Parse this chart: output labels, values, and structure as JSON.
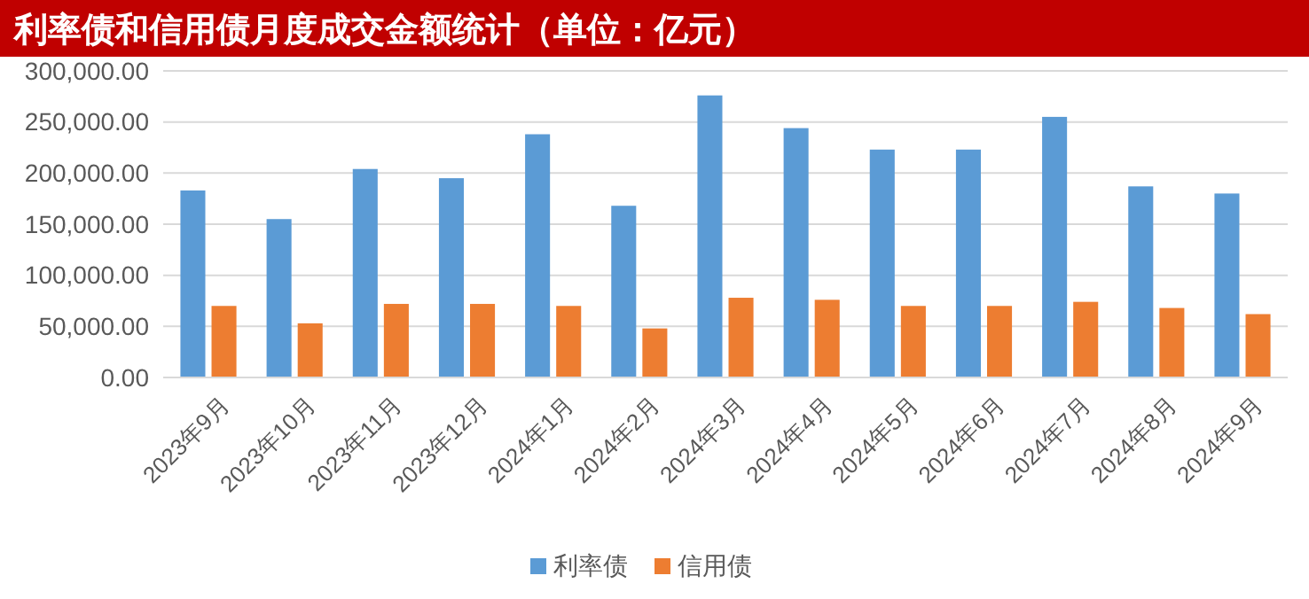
{
  "chart_data": {
    "type": "bar",
    "title": "利率债和信用债月度成交金额统计（单位：亿元）",
    "categories": [
      "2023年9月",
      "2023年10月",
      "2023年11月",
      "2023年12月",
      "2024年1月",
      "2024年2月",
      "2024年3月",
      "2024年4月",
      "2024年5月",
      "2024年6月",
      "2024年7月",
      "2024年8月",
      "2024年9月"
    ],
    "series": [
      {
        "name": "利率债",
        "color": "#5b9bd5",
        "values": [
          183000,
          155000,
          204000,
          195000,
          238000,
          168000,
          276000,
          244000,
          223000,
          223000,
          255000,
          187000,
          180000
        ]
      },
      {
        "name": "信用债",
        "color": "#ed7d31",
        "values": [
          70000,
          53000,
          72000,
          72000,
          70000,
          48000,
          78000,
          76000,
          70000,
          70000,
          74000,
          68000,
          62000
        ]
      }
    ],
    "ylim": [
      0,
      300000
    ],
    "yticks": [
      {
        "value": 0,
        "label": "0.00"
      },
      {
        "value": 50000,
        "label": "50,000.00"
      },
      {
        "value": 100000,
        "label": "100,000.00"
      },
      {
        "value": 150000,
        "label": "150,000.00"
      },
      {
        "value": 200000,
        "label": "200,000.00"
      },
      {
        "value": 250000,
        "label": "250,000.00"
      },
      {
        "value": 300000,
        "label": "300,000.00"
      }
    ],
    "grid": "y",
    "legend": "bottom"
  }
}
